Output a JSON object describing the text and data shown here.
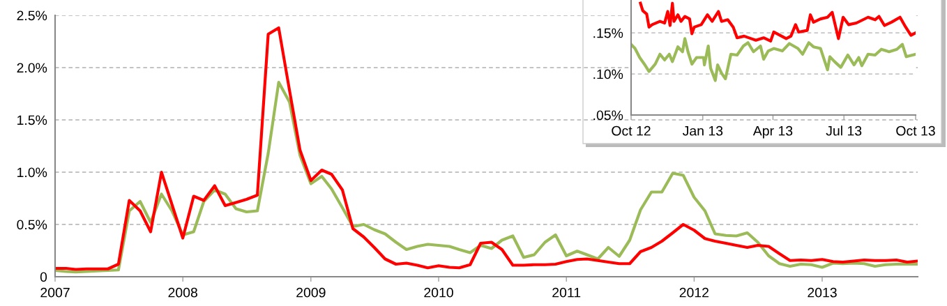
{
  "chart_data": [
    {
      "type": "line",
      "x": [
        "2007-01",
        "2007-02",
        "2007-03",
        "2007-04",
        "2007-05",
        "2007-06",
        "2007-07",
        "2007-08",
        "2007-09",
        "2007-10",
        "2007-11",
        "2007-12",
        "2008-01",
        "2008-02",
        "2008-03",
        "2008-04",
        "2008-05",
        "2008-06",
        "2008-07",
        "2008-08",
        "2008-09",
        "2008-10",
        "2008-11",
        "2008-12",
        "2009-01",
        "2009-02",
        "2009-03",
        "2009-04",
        "2009-05",
        "2009-06",
        "2009-07",
        "2009-08",
        "2009-09",
        "2009-10",
        "2009-11",
        "2009-12",
        "2010-01",
        "2010-02",
        "2010-03",
        "2010-04",
        "2010-05",
        "2010-06",
        "2010-07",
        "2010-08",
        "2010-09",
        "2010-10",
        "2010-11",
        "2010-12",
        "2011-01",
        "2011-02",
        "2011-03",
        "2011-04",
        "2011-05",
        "2011-06",
        "2011-07",
        "2011-08",
        "2011-09",
        "2011-10",
        "2011-11",
        "2011-12",
        "2012-01",
        "2012-02",
        "2012-03",
        "2012-04",
        "2012-05",
        "2012-06",
        "2012-07",
        "2012-08",
        "2012-09",
        "2012-10",
        "2012-11",
        "2012-12",
        "2013-01",
        "2013-02",
        "2013-03",
        "2013-04",
        "2013-05",
        "2013-06",
        "2013-07",
        "2013-08",
        "2013-09",
        "2013-10"
      ],
      "series": [
        {
          "color": "#9bbb59",
          "values": [
            0.06,
            0.05,
            0.045,
            0.05,
            0.055,
            0.06,
            0.065,
            0.63,
            0.72,
            0.52,
            0.79,
            0.63,
            0.4,
            0.43,
            0.72,
            0.83,
            0.79,
            0.65,
            0.62,
            0.63,
            1.18,
            1.86,
            1.67,
            1.16,
            0.89,
            0.96,
            0.84,
            0.66,
            0.48,
            0.5,
            0.45,
            0.41,
            0.33,
            0.26,
            0.29,
            0.31,
            0.3,
            0.29,
            0.26,
            0.23,
            0.3,
            0.27,
            0.35,
            0.39,
            0.185,
            0.21,
            0.33,
            0.4,
            0.2,
            0.245,
            0.21,
            0.17,
            0.28,
            0.195,
            0.35,
            0.64,
            0.81,
            0.81,
            0.99,
            0.97,
            0.76,
            0.63,
            0.41,
            0.395,
            0.39,
            0.42,
            0.33,
            0.2,
            0.125,
            0.1,
            0.12,
            0.115,
            0.09,
            0.13,
            0.125,
            0.13,
            0.125,
            0.1,
            0.115,
            0.12,
            0.12,
            0.12
          ]
        },
        {
          "color": "#ff0000",
          "values": [
            0.08,
            0.08,
            0.07,
            0.075,
            0.075,
            0.075,
            0.12,
            0.73,
            0.63,
            0.43,
            1.0,
            0.69,
            0.37,
            0.77,
            0.73,
            0.87,
            0.68,
            0.71,
            0.74,
            0.78,
            2.32,
            2.38,
            1.78,
            1.21,
            0.92,
            1.02,
            0.98,
            0.83,
            0.46,
            0.38,
            0.28,
            0.17,
            0.12,
            0.13,
            0.11,
            0.085,
            0.105,
            0.09,
            0.085,
            0.115,
            0.32,
            0.33,
            0.26,
            0.11,
            0.11,
            0.115,
            0.115,
            0.12,
            0.145,
            0.165,
            0.17,
            0.155,
            0.14,
            0.125,
            0.125,
            0.24,
            0.28,
            0.34,
            0.42,
            0.5,
            0.445,
            0.365,
            0.34,
            0.32,
            0.3,
            0.28,
            0.3,
            0.29,
            0.22,
            0.155,
            0.16,
            0.155,
            0.165,
            0.145,
            0.14,
            0.15,
            0.16,
            0.155,
            0.155,
            0.16,
            0.14,
            0.15
          ]
        }
      ],
      "xlim": [
        "2007-01",
        "2013-10"
      ],
      "xticks": [
        {
          "value": "2007",
          "label": "2007"
        },
        {
          "value": "2008",
          "label": "2008"
        },
        {
          "value": "2009",
          "label": "2009"
        },
        {
          "value": "2010",
          "label": "2010"
        },
        {
          "value": "2011",
          "label": "2011"
        },
        {
          "value": "2012",
          "label": "2012"
        },
        {
          "value": "2013",
          "label": "2013"
        }
      ],
      "ylim": [
        0,
        2.5
      ],
      "yticks": [
        0,
        {
          "value": 0.5,
          "label": "0.5%"
        },
        {
          "value": 1.0,
          "label": "1.0%"
        },
        {
          "value": 1.5,
          "label": "1.5%"
        },
        {
          "value": 2.0,
          "label": "2.0%"
        },
        {
          "value": 2.5,
          "label": "2.5%"
        }
      ],
      "grid": "y",
      "line_style": "solid",
      "marker": "none"
    },
    {
      "type": "line",
      "series": [
        {
          "color": "#9bbb59",
          "x": [
            "2012-10-01",
            "2012-10-06",
            "2012-10-12",
            "2012-10-18",
            "2012-10-24",
            "2012-11-01",
            "2012-11-07",
            "2012-11-13",
            "2012-11-19",
            "2012-11-23",
            "2012-11-30",
            "2012-12-06",
            "2012-12-09",
            "2012-12-13",
            "2012-12-18",
            "2012-12-24",
            "2013-01-02",
            "2013-01-03",
            "2013-01-08",
            "2013-01-11",
            "2013-01-17",
            "2013-01-20",
            "2013-01-25",
            "2013-01-30",
            "2013-02-06",
            "2013-02-14",
            "2013-02-22",
            "2013-02-28",
            "2013-03-07",
            "2013-03-16",
            "2013-03-20",
            "2013-03-26",
            "2013-04-02",
            "2013-04-13",
            "2013-04-22",
            "2013-05-03",
            "2013-05-09",
            "2013-05-17",
            "2013-05-23",
            "2013-06-01",
            "2013-06-10",
            "2013-06-13",
            "2013-06-19",
            "2013-06-27",
            "2013-07-06",
            "2013-07-14",
            "2013-07-20",
            "2013-07-24",
            "2013-08-01",
            "2013-08-10",
            "2013-08-18",
            "2013-08-28",
            "2013-09-07",
            "2013-09-14",
            "2013-09-19",
            "2013-10-01"
          ],
          "values": [
            0.136,
            0.131,
            0.12,
            0.112,
            0.103,
            0.112,
            0.124,
            0.117,
            0.124,
            0.115,
            0.133,
            0.127,
            0.143,
            0.127,
            0.112,
            0.12,
            0.12,
            0.111,
            0.134,
            0.107,
            0.092,
            0.111,
            0.101,
            0.094,
            0.124,
            0.123,
            0.134,
            0.138,
            0.127,
            0.134,
            0.118,
            0.128,
            0.131,
            0.128,
            0.137,
            0.131,
            0.124,
            0.138,
            0.133,
            0.131,
            0.105,
            0.121,
            0.115,
            0.108,
            0.123,
            0.111,
            0.12,
            0.11,
            0.124,
            0.123,
            0.13,
            0.127,
            0.13,
            0.136,
            0.121,
            0.124
          ]
        },
        {
          "color": "#ff0000",
          "x": [
            "2012-10-13",
            "2012-10-16",
            "2012-10-21",
            "2012-10-24",
            "2012-10-28",
            "2012-11-07",
            "2012-11-13",
            "2012-11-17",
            "2012-11-20",
            "2012-11-23",
            "2012-11-25",
            "2012-11-30",
            "2012-12-04",
            "2012-12-09",
            "2012-12-15",
            "2012-12-18",
            "2012-12-21",
            "2012-12-30",
            "2013-01-07",
            "2013-01-13",
            "2013-01-21",
            "2013-01-25",
            "2013-02-02",
            "2013-02-09",
            "2013-02-14",
            "2013-02-23",
            "2013-03-04",
            "2013-03-10",
            "2013-03-20",
            "2013-03-29",
            "2013-04-02",
            "2013-04-10",
            "2013-04-18",
            "2013-04-24",
            "2013-04-30",
            "2013-05-04",
            "2013-05-15",
            "2013-05-19",
            "2013-05-23",
            "2013-06-01",
            "2013-06-10",
            "2013-06-16",
            "2013-06-24",
            "2013-06-30",
            "2013-07-07",
            "2013-07-17",
            "2013-08-01",
            "2013-08-10",
            "2013-08-15",
            "2013-08-22",
            "2013-08-31",
            "2013-09-11",
            "2013-09-17",
            "2013-09-25",
            "2013-10-01"
          ],
          "values": [
            0.186,
            0.177,
            0.173,
            0.157,
            0.16,
            0.164,
            0.162,
            0.176,
            0.159,
            0.186,
            0.164,
            0.172,
            0.164,
            0.17,
            0.167,
            0.149,
            0.157,
            0.16,
            0.172,
            0.164,
            0.176,
            0.164,
            0.166,
            0.157,
            0.144,
            0.146,
            0.143,
            0.141,
            0.144,
            0.14,
            0.151,
            0.147,
            0.143,
            0.146,
            0.16,
            0.151,
            0.153,
            0.172,
            0.163,
            0.167,
            0.169,
            0.175,
            0.143,
            0.169,
            0.16,
            0.162,
            0.169,
            0.166,
            0.17,
            0.159,
            0.163,
            0.169,
            0.159,
            0.147,
            0.15
          ]
        }
      ],
      "xlim": [
        "2012-10-01",
        "2013-10-01"
      ],
      "xticks": [
        {
          "value": "2012-10-01",
          "label": "Oct 12"
        },
        {
          "value": "2013-01-01",
          "label": "Jan 13"
        },
        {
          "value": "2013-04-01",
          "label": "Apr 13"
        },
        {
          "value": "2013-07-01",
          "label": "Jul 13"
        },
        {
          "value": "2013-10-01",
          "label": "Oct 13"
        }
      ],
      "ylim": [
        0.05,
        0.19
      ],
      "yticks": [
        {
          "value": 0.05,
          "label": ".05%"
        },
        {
          "value": 0.1,
          "label": ".10%"
        },
        {
          "value": 0.15,
          "label": ".15%"
        }
      ],
      "grid": "y",
      "line_style": "solid",
      "marker": "none"
    }
  ]
}
